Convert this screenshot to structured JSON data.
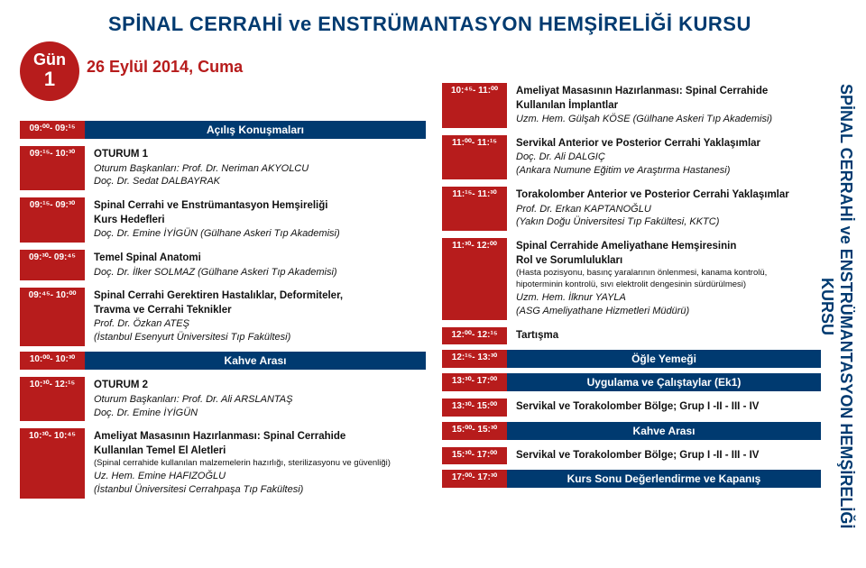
{
  "title": "SPİNAL CERRAHİ ve ENSTRÜMANTASYON HEMŞİRELİĞİ KURSU",
  "verticalTitle": "SPİNAL CERRAHİ ve ENSTRÜMANTASYON HEMŞİRELİĞİ KURSU",
  "dayBadge": {
    "label": "Gün",
    "num": "1"
  },
  "date": "26 Eylül 2014, Cuma",
  "left": [
    {
      "type": "band",
      "time": "09:⁰⁰- 09:¹⁵",
      "label": "Açılış Konuşmaları"
    },
    {
      "type": "row",
      "time": "09:¹⁵- 10:³⁰",
      "lines": [
        {
          "t": "OTURUM 1",
          "cls": "bold"
        },
        {
          "t": "Oturum Başkanları:  Prof. Dr. Neriman AKYOLCU",
          "cls": "chairs"
        },
        {
          "t": "                                  Doç. Dr. Sedat DALBAYRAK",
          "cls": "chairs"
        }
      ]
    },
    {
      "type": "row",
      "time": "09:¹⁵- 09:³⁰",
      "lines": [
        {
          "t": "Spinal Cerrahi ve  Enstrümantasyon Hemşireliği",
          "cls": "bold"
        },
        {
          "t": "Kurs Hedefleri",
          "cls": "bold"
        },
        {
          "t": "Doç. Dr. Emine İYİGÜN (Gülhane Askeri Tıp Akademisi)",
          "cls": "chairs"
        }
      ]
    },
    {
      "type": "row",
      "time": "09:³⁰- 09:⁴⁵",
      "lines": [
        {
          "t": "Temel Spinal Anatomi",
          "cls": "bold"
        },
        {
          "t": "Doç. Dr. İlker SOLMAZ (Gülhane Askeri Tıp Akademisi)",
          "cls": "chairs"
        }
      ]
    },
    {
      "type": "row",
      "time": "09:⁴⁵- 10:⁰⁰",
      "lines": [
        {
          "t": "Spinal Cerrahi Gerektiren Hastalıklar, Deformiteler,",
          "cls": "bold"
        },
        {
          "t": "Travma ve Cerrahi Teknikler",
          "cls": "bold"
        },
        {
          "t": "Prof. Dr. Özkan ATEŞ",
          "cls": "chairs"
        },
        {
          "t": "(İstanbul Esenyurt Üniversitesi Tıp Fakültesi)",
          "cls": "chairs"
        }
      ]
    },
    {
      "type": "band",
      "time": "10:⁰⁰- 10:³⁰",
      "label": "Kahve Arası"
    },
    {
      "type": "row",
      "time": "10:³⁰- 12:¹⁵",
      "lines": [
        {
          "t": "OTURUM 2",
          "cls": "bold"
        },
        {
          "t": "Oturum Başkanları:  Prof. Dr. Ali ARSLANTAŞ",
          "cls": "chairs"
        },
        {
          "t": "                                  Doç. Dr. Emine İYİGÜN",
          "cls": "chairs"
        }
      ]
    },
    {
      "type": "row",
      "time": "10:³⁰- 10:⁴⁵",
      "lines": [
        {
          "t": "Ameliyat  Masasının Hazırlanması: Spinal Cerrahide",
          "cls": "bold"
        },
        {
          "t": "Kullanılan Temel El Aletleri",
          "cls": "bold"
        },
        {
          "t": "(Spinal cerrahide kullanılan malzemelerin hazırlığı, sterilizasyonu ve güvenliği)",
          "cls": "smallnote"
        },
        {
          "t": "Uz. Hem. Emine HAFIZOĞLU",
          "cls": "chairs"
        },
        {
          "t": "(İstanbul Üniversitesi Cerrahpaşa Tıp Fakültesi)",
          "cls": "chairs"
        }
      ]
    }
  ],
  "right": [
    {
      "type": "row",
      "time": "10:⁴⁵- 11:⁰⁰",
      "lines": [
        {
          "t": "Ameliyat Masasının Hazırlanması: Spinal Cerrahide",
          "cls": "bold"
        },
        {
          "t": "Kullanılan İmplantlar",
          "cls": "bold"
        },
        {
          "t": "Uzm. Hem. Gülşah KÖSE (Gülhane Askeri Tıp Akademisi)",
          "cls": "chairs"
        }
      ]
    },
    {
      "type": "row",
      "time": "11:⁰⁰- 11:¹⁵",
      "lines": [
        {
          "t": "Servikal Anterior ve Posterior Cerrahi Yaklaşımlar",
          "cls": "bold"
        },
        {
          "t": "Doç. Dr. Ali DALGIÇ",
          "cls": "chairs"
        },
        {
          "t": "(Ankara Numune Eğitim ve Araştırma Hastanesi)",
          "cls": "chairs"
        }
      ]
    },
    {
      "type": "row",
      "time": "11:¹⁵- 11:³⁰",
      "lines": [
        {
          "t": "Torakolomber Anterior ve Posterior Cerrahi Yaklaşımlar",
          "cls": "bold"
        },
        {
          "t": "Prof. Dr. Erkan KAPTANOĞLU",
          "cls": "chairs"
        },
        {
          "t": "(Yakın Doğu Üniversitesi Tıp Fakültesi, KKTC)",
          "cls": "chairs"
        }
      ]
    },
    {
      "type": "row",
      "time": "11:³⁰- 12:⁰⁰",
      "lines": [
        {
          "t": "Spinal Cerrahide Ameliyathane Hemşiresinin",
          "cls": "bold"
        },
        {
          "t": "Rol ve Sorumlulukları",
          "cls": "bold"
        },
        {
          "t": "(Hasta pozisyonu, basınç yaralarının önlenmesi, kanama kontrolü,",
          "cls": "smallnote"
        },
        {
          "t": "hipoterminin kontrolü, sıvı elektrolit dengesinin sürdürülmesi)",
          "cls": "smallnote"
        },
        {
          "t": "Uzm. Hem. İlknur YAYLA",
          "cls": "chairs"
        },
        {
          "t": "(ASG Ameliyathane Hizmetleri Müdürü)",
          "cls": "chairs"
        }
      ]
    },
    {
      "type": "row",
      "time": "12:⁰⁰- 12:¹⁵",
      "lines": [
        {
          "t": "Tartışma",
          "cls": "bold"
        }
      ]
    },
    {
      "type": "band",
      "time": "12:¹⁵- 13:³⁰",
      "label": "Öğle Yemeği"
    },
    {
      "type": "band",
      "time": "13:³⁰- 17:⁰⁰",
      "label": "Uygulama ve Çalıştaylar (Ek1)"
    },
    {
      "type": "row",
      "time": "13:³⁰- 15:⁰⁰",
      "lines": [
        {
          "t": "Servikal ve Torakolomber Bölge; Grup  I -II - III - IV",
          "cls": "bold"
        }
      ]
    },
    {
      "type": "band",
      "time": "15:⁰⁰- 15:³⁰",
      "label": "Kahve Arası"
    },
    {
      "type": "row",
      "time": "15:³⁰- 17:⁰⁰",
      "lines": [
        {
          "t": "Servikal ve Torakolomber Bölge; Grup  I -II - III - IV",
          "cls": "bold"
        }
      ]
    },
    {
      "type": "band",
      "time": "17:⁰⁰- 17:³⁰",
      "label": "Kurs Sonu Değerlendirme ve Kapanış"
    }
  ]
}
